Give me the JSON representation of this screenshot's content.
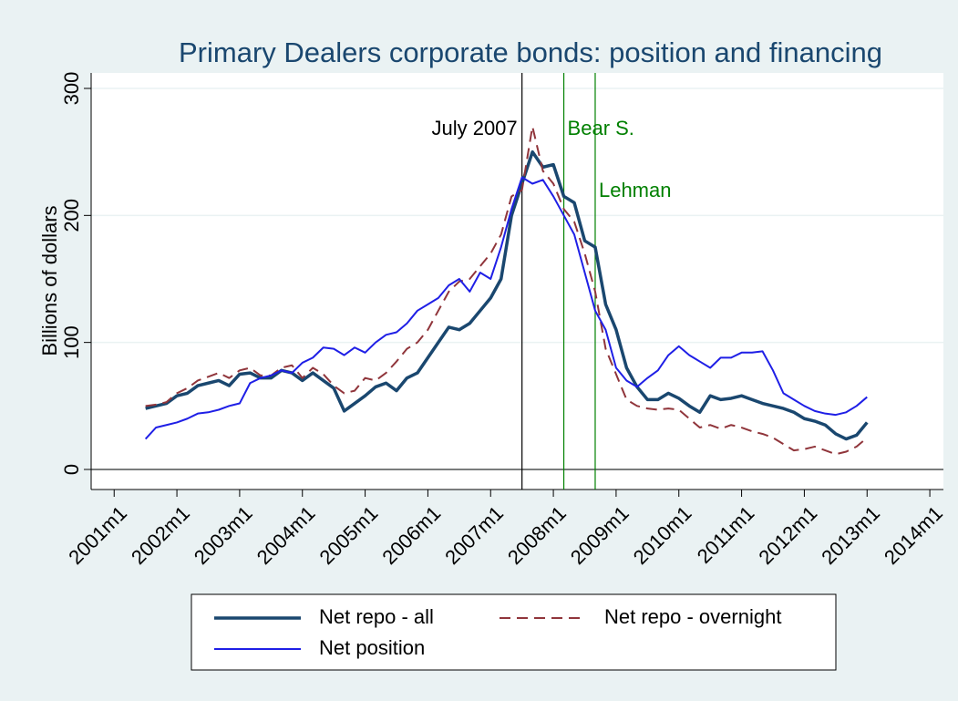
{
  "chart_data": {
    "type": "line",
    "title": "Primary Dealers corporate bonds: position and financing",
    "ylabel": "Billions of dollars",
    "x": [
      498,
      500,
      502,
      504,
      506,
      508,
      510,
      512,
      514,
      516,
      518,
      520,
      522,
      524,
      526,
      528,
      530,
      532,
      534,
      536,
      538,
      540,
      542,
      544,
      546,
      548,
      550,
      552,
      554,
      556,
      558,
      560,
      562,
      564,
      566,
      568,
      570,
      572,
      574,
      576,
      578,
      580,
      582,
      584,
      586,
      588,
      590,
      592,
      594,
      596,
      598,
      600,
      602,
      604,
      606,
      608,
      610,
      612,
      614,
      616,
      618,
      620,
      622,
      624,
      626,
      628,
      630,
      632,
      634,
      636
    ],
    "series": [
      {
        "name": "Net repo - all",
        "color": "#1a476f",
        "style": "solid",
        "width": 3.5,
        "values": [
          48,
          50,
          52,
          58,
          60,
          66,
          68,
          70,
          66,
          75,
          76,
          72,
          72,
          78,
          76,
          70,
          76,
          70,
          64,
          46,
          52,
          58,
          65,
          68,
          62,
          72,
          76,
          88,
          100,
          112,
          110,
          115,
          125,
          135,
          150,
          200,
          225,
          250,
          238,
          240,
          215,
          210,
          180,
          175,
          130,
          110,
          80,
          65,
          55,
          55,
          60,
          56,
          50,
          45,
          58,
          55,
          56,
          58,
          55,
          52,
          50,
          48,
          45,
          40,
          38,
          35,
          28,
          24,
          27,
          37
        ]
      },
      {
        "name": "Net repo - overnight",
        "color": "#90353b",
        "style": "dashed",
        "width": 2,
        "values": [
          50,
          51,
          53,
          60,
          64,
          70,
          73,
          76,
          72,
          78,
          80,
          74,
          74,
          80,
          82,
          72,
          80,
          75,
          66,
          60,
          62,
          72,
          70,
          76,
          85,
          95,
          100,
          110,
          125,
          140,
          148,
          150,
          160,
          170,
          185,
          215,
          220,
          270,
          235,
          225,
          205,
          195,
          170,
          140,
          95,
          75,
          55,
          50,
          48,
          47,
          48,
          47,
          40,
          33,
          35,
          32,
          35,
          33,
          30,
          28,
          25,
          20,
          15,
          16,
          18,
          15,
          12,
          14,
          18,
          25
        ]
      },
      {
        "name": "Net position",
        "color": "#1f1fe6",
        "style": "solid",
        "width": 2,
        "values": [
          24,
          33,
          35,
          37,
          40,
          44,
          45,
          47,
          50,
          52,
          68,
          72,
          74,
          78,
          76,
          84,
          88,
          96,
          95,
          90,
          96,
          92,
          100,
          106,
          108,
          115,
          125,
          130,
          135,
          145,
          150,
          140,
          155,
          150,
          175,
          205,
          230,
          225,
          228,
          215,
          200,
          185,
          155,
          125,
          110,
          80,
          70,
          65,
          72,
          78,
          90,
          97,
          90,
          85,
          80,
          88,
          88,
          92,
          92,
          93,
          78,
          60,
          55,
          50,
          46,
          44,
          43,
          45,
          50,
          57
        ]
      }
    ],
    "xlim": [
      487.6,
      650.6
    ],
    "xticks": [
      {
        "value": 492,
        "label": "2001m1"
      },
      {
        "value": 504,
        "label": "2002m1"
      },
      {
        "value": 516,
        "label": "2003m1"
      },
      {
        "value": 528,
        "label": "2004m1"
      },
      {
        "value": 540,
        "label": "2005m1"
      },
      {
        "value": 552,
        "label": "2006m1"
      },
      {
        "value": 564,
        "label": "2007m1"
      },
      {
        "value": 576,
        "label": "2008m1"
      },
      {
        "value": 588,
        "label": "2009m1"
      },
      {
        "value": 600,
        "label": "2010m1"
      },
      {
        "value": 612,
        "label": "2011m1"
      },
      {
        "value": 624,
        "label": "2012m1"
      },
      {
        "value": 636,
        "label": "2013m1"
      },
      {
        "value": 648,
        "label": "2014m1"
      }
    ],
    "ylim": [
      -15.8,
      312.2
    ],
    "yticks": [
      0,
      100,
      200,
      300
    ],
    "grid": true,
    "yline": 0,
    "vlines": [
      {
        "x": 570,
        "label": "July 2007",
        "color": "#000000"
      },
      {
        "x": 578,
        "label": "Bear S.",
        "color": "#008000"
      },
      {
        "x": 584,
        "label": "Lehman",
        "color": "#008000"
      }
    ],
    "legend": "bottom"
  }
}
